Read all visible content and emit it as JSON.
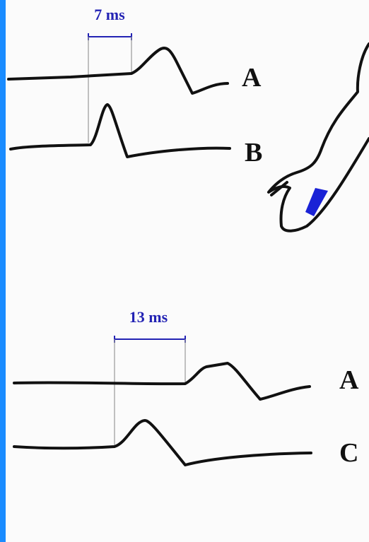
{
  "top_panel": {
    "interval_label": "7 ms",
    "traces": [
      "A",
      "B"
    ]
  },
  "bottom_panel": {
    "interval_label": "13 ms",
    "traces": [
      "A",
      "C"
    ]
  }
}
